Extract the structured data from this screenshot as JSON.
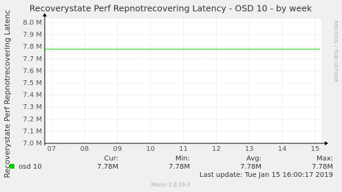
{
  "chart_data": {
    "type": "line",
    "title": "Recoverystate Perf Repnotrecovering Latency - OSD 10 - by week",
    "y_label": "Recoverystate Perf Repnotrecovering Latenc",
    "side_text": "RRDTOOL / TOBI OETIKER",
    "x": [
      6.8,
      15.15
    ],
    "series": [
      {
        "name": "osd 10",
        "color": "#00cc00",
        "values": [
          7780000,
          7780000
        ]
      }
    ],
    "xlim": [
      7,
      15
    ],
    "xticks": [
      {
        "value": 7,
        "label": "07"
      },
      {
        "value": 8,
        "label": "08"
      },
      {
        "value": 9,
        "label": "09"
      },
      10,
      11,
      12,
      13,
      14,
      15
    ],
    "ylim": [
      7000000,
      8000000
    ],
    "yticks": [
      {
        "value": 7000000,
        "label": "7.0 M"
      },
      {
        "value": 7100000,
        "label": "7.1 M"
      },
      {
        "value": 7200000,
        "label": "7.2 M"
      },
      {
        "value": 7300000,
        "label": "7.3 M"
      },
      {
        "value": 7400000,
        "label": "7.4 M"
      },
      {
        "value": 7500000,
        "label": "7.5 M"
      },
      {
        "value": 7600000,
        "label": "7.6 M"
      },
      {
        "value": 7700000,
        "label": "7.7 M"
      },
      {
        "value": 7800000,
        "label": "7.8 M"
      },
      {
        "value": 7900000,
        "label": "7.9 M"
      },
      {
        "value": 8000000,
        "label": "8.0 M"
      }
    ],
    "grid": true,
    "stats": {
      "headers": [
        "Cur:",
        "Min:",
        "Avg:",
        "Max:"
      ],
      "values": [
        7780000,
        7780000,
        7780000,
        7780000
      ],
      "value_labels": [
        "7.78M",
        "7.78M",
        "7.78M",
        "7.78M"
      ]
    },
    "last_update": "Last update:  Tue Jan 15 16:00:17 2019",
    "footer": "Munin 2.0.19-3"
  }
}
